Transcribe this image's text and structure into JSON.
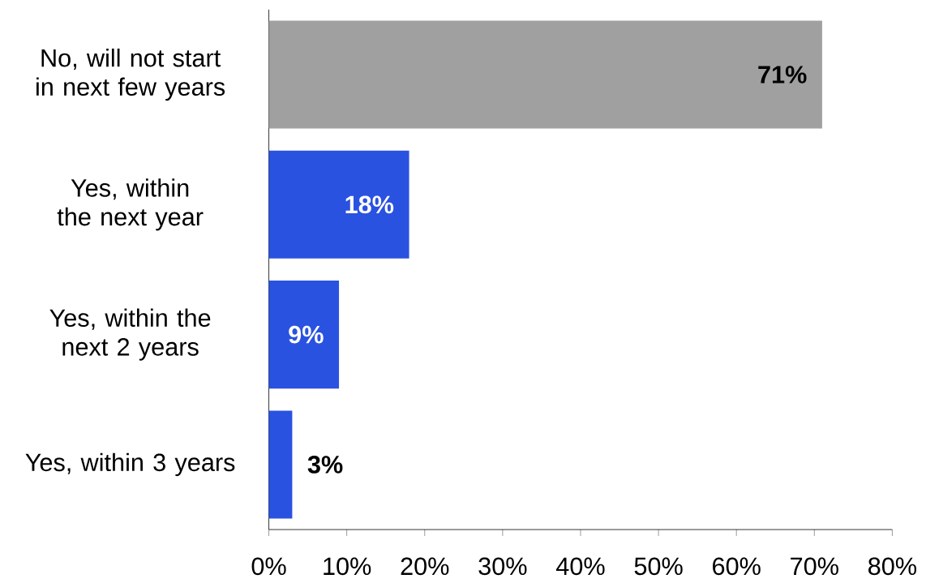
{
  "chart_data": {
    "type": "bar",
    "orientation": "horizontal",
    "categories": [
      "No, will not start in next few years",
      "Yes, within the next year",
      "Yes, within the next 2 years",
      "Yes, within 3 years"
    ],
    "values": [
      71,
      18,
      9,
      3
    ],
    "colors": [
      "#a0a0a0",
      "#2a52e0",
      "#2a52e0",
      "#2a52e0"
    ],
    "value_labels": [
      "71%",
      "18%",
      "9%",
      "3%"
    ],
    "xlim": [
      0,
      80
    ],
    "xticks": [
      {
        "value": 0,
        "label": "0%"
      },
      {
        "value": 10,
        "label": "10%"
      },
      {
        "value": 20,
        "label": "20%"
      },
      {
        "value": 30,
        "label": "30%"
      },
      {
        "value": 40,
        "label": "40%"
      },
      {
        "value": 50,
        "label": "50%"
      },
      {
        "value": 60,
        "label": "60%"
      },
      {
        "value": 70,
        "label": "70%"
      },
      {
        "value": 80,
        "label": "80%"
      }
    ],
    "grid": false
  }
}
